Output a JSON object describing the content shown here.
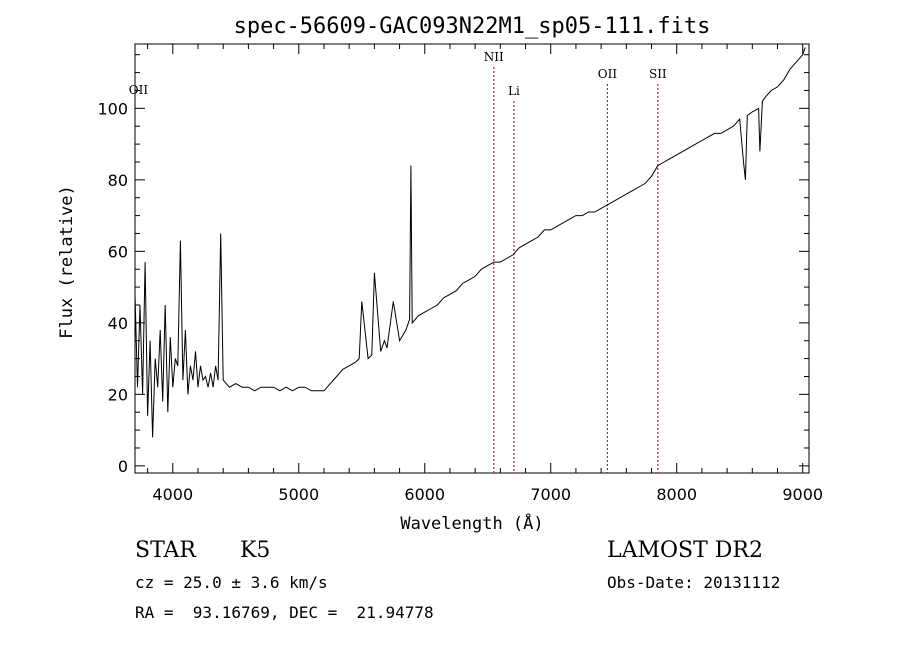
{
  "chart_data": {
    "type": "line",
    "title": "spec-56609-GAC093N22M1_sp05-111.fits",
    "xlabel": "Wavelength (Å)",
    "ylabel": "Flux (relative)",
    "xlim": [
      3700,
      9050
    ],
    "ylim": [
      -2,
      118
    ],
    "xticks": [
      4000,
      5000,
      6000,
      7000,
      8000,
      9000
    ],
    "yticks": [
      0,
      20,
      40,
      60,
      80,
      100
    ],
    "grid": false,
    "line_color": "#000000",
    "series": [
      {
        "x": [
          3700,
          3720,
          3740,
          3760,
          3780,
          3800,
          3820,
          3840,
          3860,
          3880,
          3900,
          3920,
          3940,
          3960,
          3980,
          4000,
          4020,
          4040,
          4060,
          4080,
          4100,
          4120,
          4140,
          4160,
          4180,
          4200,
          4220,
          4240,
          4260,
          4280,
          4300,
          4320,
          4340,
          4360,
          4380,
          4400,
          4450,
          4500,
          4550,
          4600,
          4650,
          4700,
          4750,
          4800,
          4850,
          4900,
          4950,
          5000,
          5050,
          5100,
          5150,
          5200,
          5250,
          5300,
          5350,
          5400,
          5450,
          5480,
          5500,
          5550,
          5580,
          5600,
          5650,
          5680,
          5700,
          5750,
          5800,
          5850,
          5880,
          5890,
          5900,
          5950,
          6000,
          6050,
          6100,
          6150,
          6200,
          6250,
          6300,
          6350,
          6400,
          6450,
          6500,
          6550,
          6600,
          6650,
          6700,
          6750,
          6800,
          6850,
          6900,
          6950,
          7000,
          7050,
          7100,
          7150,
          7200,
          7250,
          7300,
          7350,
          7400,
          7450,
          7500,
          7550,
          7600,
          7650,
          7700,
          7750,
          7800,
          7850,
          7900,
          7950,
          8000,
          8050,
          8100,
          8150,
          8200,
          8250,
          8300,
          8350,
          8400,
          8450,
          8500,
          8530,
          8545,
          8560,
          8600,
          8650,
          8660,
          8680,
          8700,
          8750,
          8800,
          8850,
          8900,
          8950,
          9000,
          9020
        ],
        "y": [
          48,
          22,
          45,
          20,
          57,
          14,
          35,
          8,
          30,
          22,
          38,
          18,
          45,
          15,
          36,
          22,
          30,
          28,
          63,
          24,
          38,
          20,
          28,
          24,
          32,
          22,
          28,
          24,
          25,
          22,
          26,
          22,
          28,
          24,
          65,
          24,
          22,
          23,
          22,
          22,
          21,
          22,
          22,
          22,
          21,
          22,
          21,
          22,
          22,
          21,
          21,
          21,
          23,
          25,
          27,
          28,
          29,
          30,
          46,
          30,
          31,
          54,
          32,
          35,
          33,
          46,
          35,
          38,
          41,
          84,
          40,
          42,
          43,
          44,
          45,
          47,
          48,
          49,
          51,
          52,
          53,
          55,
          56,
          57,
          57,
          58,
          59,
          61,
          62,
          63,
          64,
          66,
          66,
          67,
          68,
          69,
          70,
          70,
          71,
          71,
          72,
          73,
          74,
          75,
          76,
          77,
          78,
          79,
          81,
          84,
          85,
          86,
          87,
          88,
          89,
          90,
          91,
          92,
          93,
          93,
          94,
          95,
          97,
          85,
          80,
          98,
          99,
          100,
          88,
          102,
          103,
          105,
          106,
          108,
          111,
          113,
          115,
          117
        ]
      }
    ],
    "lines": [
      {
        "label": "OII",
        "x": 3727
      },
      {
        "label": "NII",
        "x": 6548
      },
      {
        "label": "Li",
        "x": 6708
      },
      {
        "label": "OII",
        "x": 7450
      },
      {
        "label": "SII",
        "x": 7850
      }
    ],
    "line_marker_color": "#b22222"
  },
  "info": {
    "class": "STAR",
    "subclass": "K5",
    "survey": "LAMOST DR2",
    "cz": "cz = 25.0 ± 3.6 km/s",
    "obs_date": "Obs-Date: 20131112",
    "coords": "RA =  93.16769, DEC =  21.94778"
  }
}
